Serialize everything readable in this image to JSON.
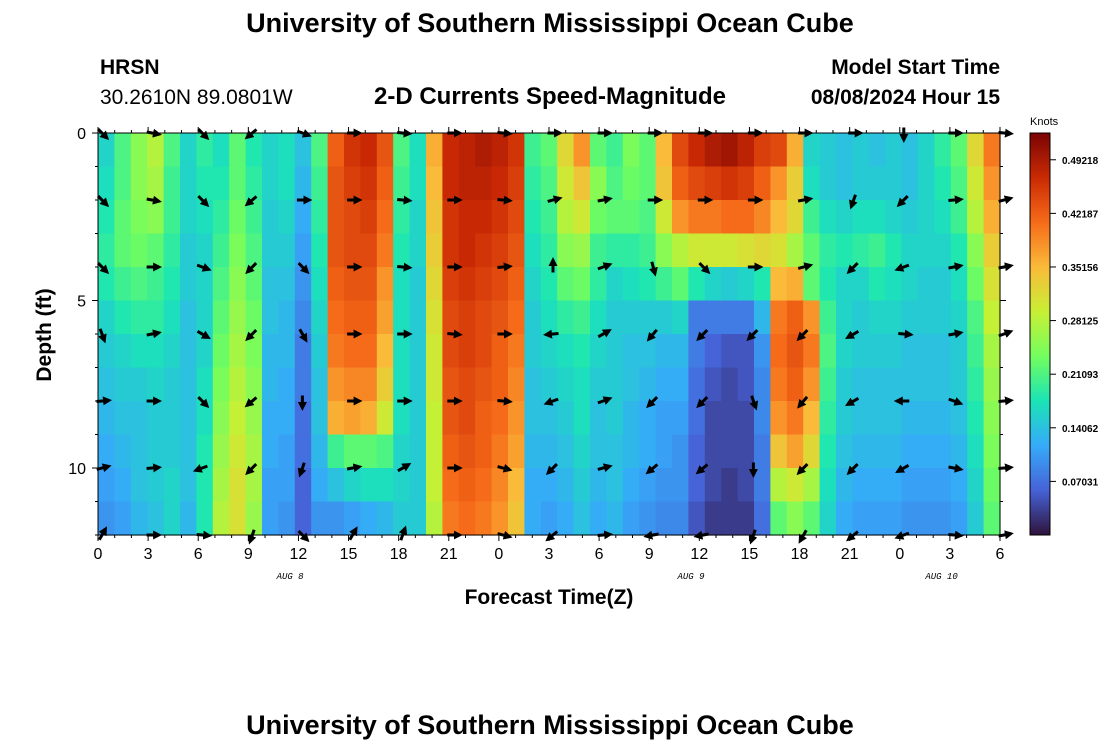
{
  "header": {
    "title": "University of Southern Mississippi Ocean Cube",
    "station_id": "HRSN",
    "station_coords": "30.2610N  89.0801W",
    "subtitle": "2-D Currents Speed-Magnitude",
    "model_start_label": "Model Start Time",
    "model_start_value": "08/08/2024 Hour 15"
  },
  "footer": {
    "repeat_title": "University of Southern Mississippi Ocean Cube"
  },
  "chart_data": {
    "type": "heatmap",
    "title": "2-D Currents Speed-Magnitude",
    "xlabel": "Forecast Time(Z)",
    "ylabel": "Depth (ft)",
    "x_ticks": [
      "0",
      "3",
      "6",
      "9",
      "12",
      "15",
      "18",
      "21",
      "0",
      "3",
      "6",
      "9",
      "12",
      "15",
      "18",
      "21",
      "0",
      "3",
      "6"
    ],
    "x_range_hours": [
      0,
      54
    ],
    "day_labels": [
      {
        "label": "AUG 8",
        "hour": 11.5
      },
      {
        "label": "AUG 9",
        "hour": 35.5
      },
      {
        "label": "AUG 10",
        "hour": 50.5
      }
    ],
    "y_ticks": [
      0,
      5,
      10
    ],
    "y_range_ft": [
      0,
      12
    ],
    "y_inverted": true,
    "colorbar": {
      "label": "Knots",
      "ticks": [
        "0.49218",
        "0.42187",
        "0.35156",
        "0.28125",
        "0.21093",
        "0.14062",
        "0.07031"
      ],
      "min": 0,
      "max": 0.5273,
      "stops": [
        "#30123b",
        "#4662d7",
        "#36aaf9",
        "#1ae4b6",
        "#72fe5e",
        "#c8ef34",
        "#faba39",
        "#f66b19",
        "#ca2a04",
        "#7a0403"
      ]
    },
    "column_hours": [
      0,
      1,
      2,
      3,
      4,
      5,
      6,
      7,
      8,
      9,
      10,
      11,
      12,
      13,
      14,
      15,
      16,
      17,
      18,
      19,
      20,
      21,
      22,
      23,
      24,
      25,
      26,
      27,
      28,
      29,
      30,
      31,
      32,
      33,
      34,
      35,
      36,
      37,
      38,
      39,
      40,
      41,
      42,
      43,
      44,
      45,
      46,
      47,
      48,
      49,
      50,
      51,
      52,
      53,
      54
    ],
    "row_depths_ft": [
      0.5,
      1.5,
      2.5,
      3.5,
      4.5,
      5.5,
      6.5,
      7.5,
      8.5,
      9.5,
      10.5,
      11.5
    ],
    "speed_knots": [
      [
        0.16,
        0.21,
        0.25,
        0.28,
        0.21,
        0.16,
        0.19,
        0.17,
        0.22,
        0.18,
        0.16,
        0.17,
        0.14,
        0.21,
        0.42,
        0.46,
        0.47,
        0.43,
        0.21,
        0.17,
        0.36,
        0.47,
        0.48,
        0.49,
        0.48,
        0.46,
        0.2,
        0.22,
        0.32,
        0.38,
        0.22,
        0.2,
        0.24,
        0.22,
        0.35,
        0.44,
        0.47,
        0.49,
        0.5,
        0.48,
        0.45,
        0.44,
        0.36,
        0.16,
        0.15,
        0.14,
        0.15,
        0.14,
        0.15,
        0.14,
        0.16,
        0.19,
        0.22,
        0.32,
        0.4
      ],
      [
        0.17,
        0.21,
        0.25,
        0.27,
        0.2,
        0.16,
        0.18,
        0.18,
        0.22,
        0.19,
        0.16,
        0.17,
        0.13,
        0.2,
        0.43,
        0.45,
        0.46,
        0.42,
        0.2,
        0.17,
        0.35,
        0.47,
        0.48,
        0.48,
        0.47,
        0.45,
        0.19,
        0.21,
        0.3,
        0.34,
        0.25,
        0.21,
        0.23,
        0.22,
        0.34,
        0.42,
        0.44,
        0.45,
        0.46,
        0.45,
        0.42,
        0.38,
        0.33,
        0.17,
        0.15,
        0.14,
        0.15,
        0.15,
        0.15,
        0.14,
        0.16,
        0.18,
        0.21,
        0.3,
        0.38
      ],
      [
        0.18,
        0.22,
        0.24,
        0.25,
        0.2,
        0.16,
        0.17,
        0.19,
        0.23,
        0.2,
        0.15,
        0.16,
        0.12,
        0.19,
        0.43,
        0.44,
        0.45,
        0.41,
        0.19,
        0.16,
        0.34,
        0.46,
        0.47,
        0.47,
        0.46,
        0.44,
        0.18,
        0.2,
        0.28,
        0.3,
        0.23,
        0.22,
        0.22,
        0.21,
        0.3,
        0.38,
        0.4,
        0.4,
        0.41,
        0.41,
        0.39,
        0.35,
        0.32,
        0.2,
        0.17,
        0.16,
        0.17,
        0.17,
        0.16,
        0.15,
        0.16,
        0.17,
        0.2,
        0.28,
        0.36
      ],
      [
        0.19,
        0.22,
        0.23,
        0.22,
        0.19,
        0.15,
        0.16,
        0.2,
        0.24,
        0.21,
        0.15,
        0.15,
        0.11,
        0.18,
        0.43,
        0.44,
        0.44,
        0.4,
        0.18,
        0.16,
        0.33,
        0.46,
        0.47,
        0.46,
        0.45,
        0.43,
        0.17,
        0.19,
        0.25,
        0.26,
        0.2,
        0.19,
        0.19,
        0.2,
        0.25,
        0.28,
        0.3,
        0.3,
        0.3,
        0.31,
        0.32,
        0.31,
        0.27,
        0.22,
        0.19,
        0.18,
        0.19,
        0.2,
        0.18,
        0.16,
        0.16,
        0.16,
        0.18,
        0.25,
        0.33
      ],
      [
        0.18,
        0.2,
        0.21,
        0.2,
        0.18,
        0.15,
        0.16,
        0.21,
        0.25,
        0.22,
        0.14,
        0.14,
        0.1,
        0.17,
        0.42,
        0.43,
        0.43,
        0.38,
        0.17,
        0.15,
        0.32,
        0.45,
        0.46,
        0.45,
        0.44,
        0.42,
        0.16,
        0.18,
        0.22,
        0.23,
        0.19,
        0.16,
        0.17,
        0.18,
        0.2,
        0.22,
        0.18,
        0.16,
        0.15,
        0.16,
        0.18,
        0.35,
        0.36,
        0.22,
        0.18,
        0.16,
        0.16,
        0.18,
        0.17,
        0.16,
        0.15,
        0.15,
        0.17,
        0.23,
        0.31
      ],
      [
        0.16,
        0.18,
        0.19,
        0.19,
        0.17,
        0.14,
        0.16,
        0.22,
        0.26,
        0.23,
        0.14,
        0.13,
        0.09,
        0.16,
        0.41,
        0.42,
        0.42,
        0.37,
        0.17,
        0.15,
        0.31,
        0.44,
        0.45,
        0.44,
        0.43,
        0.41,
        0.15,
        0.17,
        0.19,
        0.2,
        0.17,
        0.15,
        0.15,
        0.15,
        0.15,
        0.16,
        0.08,
        0.08,
        0.08,
        0.08,
        0.13,
        0.4,
        0.42,
        0.38,
        0.2,
        0.16,
        0.15,
        0.16,
        0.16,
        0.15,
        0.15,
        0.15,
        0.16,
        0.21,
        0.29
      ],
      [
        0.15,
        0.16,
        0.17,
        0.17,
        0.16,
        0.14,
        0.16,
        0.23,
        0.27,
        0.24,
        0.13,
        0.13,
        0.08,
        0.15,
        0.4,
        0.41,
        0.41,
        0.35,
        0.17,
        0.15,
        0.3,
        0.44,
        0.45,
        0.44,
        0.42,
        0.4,
        0.15,
        0.16,
        0.17,
        0.18,
        0.16,
        0.15,
        0.14,
        0.14,
        0.13,
        0.13,
        0.08,
        0.06,
        0.05,
        0.05,
        0.1,
        0.41,
        0.43,
        0.4,
        0.21,
        0.16,
        0.15,
        0.15,
        0.15,
        0.14,
        0.14,
        0.14,
        0.15,
        0.2,
        0.27
      ],
      [
        0.14,
        0.15,
        0.15,
        0.16,
        0.15,
        0.14,
        0.17,
        0.24,
        0.28,
        0.25,
        0.13,
        0.12,
        0.08,
        0.14,
        0.38,
        0.39,
        0.39,
        0.33,
        0.17,
        0.15,
        0.3,
        0.43,
        0.44,
        0.43,
        0.42,
        0.39,
        0.14,
        0.15,
        0.16,
        0.17,
        0.15,
        0.15,
        0.14,
        0.13,
        0.12,
        0.12,
        0.07,
        0.05,
        0.04,
        0.05,
        0.09,
        0.4,
        0.42,
        0.38,
        0.2,
        0.15,
        0.14,
        0.14,
        0.14,
        0.14,
        0.14,
        0.14,
        0.15,
        0.19,
        0.26
      ],
      [
        0.13,
        0.14,
        0.14,
        0.15,
        0.15,
        0.14,
        0.17,
        0.25,
        0.29,
        0.26,
        0.12,
        0.12,
        0.07,
        0.14,
        0.36,
        0.37,
        0.36,
        0.3,
        0.17,
        0.15,
        0.29,
        0.43,
        0.44,
        0.42,
        0.41,
        0.38,
        0.14,
        0.14,
        0.15,
        0.17,
        0.14,
        0.15,
        0.13,
        0.12,
        0.11,
        0.11,
        0.07,
        0.04,
        0.04,
        0.04,
        0.09,
        0.38,
        0.4,
        0.35,
        0.19,
        0.15,
        0.14,
        0.14,
        0.14,
        0.13,
        0.13,
        0.13,
        0.14,
        0.18,
        0.25
      ],
      [
        0.12,
        0.13,
        0.14,
        0.15,
        0.15,
        0.14,
        0.18,
        0.26,
        0.3,
        0.27,
        0.12,
        0.11,
        0.07,
        0.13,
        0.2,
        0.22,
        0.22,
        0.21,
        0.16,
        0.15,
        0.29,
        0.42,
        0.43,
        0.42,
        0.4,
        0.37,
        0.13,
        0.13,
        0.14,
        0.16,
        0.14,
        0.14,
        0.13,
        0.12,
        0.11,
        0.1,
        0.06,
        0.04,
        0.04,
        0.04,
        0.08,
        0.34,
        0.37,
        0.32,
        0.18,
        0.14,
        0.13,
        0.13,
        0.13,
        0.12,
        0.12,
        0.12,
        0.13,
        0.17,
        0.24
      ],
      [
        0.11,
        0.12,
        0.14,
        0.15,
        0.16,
        0.14,
        0.18,
        0.27,
        0.31,
        0.27,
        0.11,
        0.11,
        0.06,
        0.12,
        0.14,
        0.16,
        0.17,
        0.17,
        0.16,
        0.15,
        0.29,
        0.41,
        0.42,
        0.41,
        0.39,
        0.35,
        0.12,
        0.12,
        0.13,
        0.15,
        0.13,
        0.14,
        0.12,
        0.11,
        0.1,
        0.1,
        0.06,
        0.04,
        0.03,
        0.04,
        0.08,
        0.28,
        0.3,
        0.27,
        0.17,
        0.13,
        0.12,
        0.12,
        0.12,
        0.11,
        0.11,
        0.11,
        0.12,
        0.16,
        0.23
      ],
      [
        0.1,
        0.11,
        0.13,
        0.14,
        0.16,
        0.13,
        0.18,
        0.28,
        0.31,
        0.26,
        0.11,
        0.1,
        0.06,
        0.1,
        0.1,
        0.11,
        0.12,
        0.13,
        0.15,
        0.15,
        0.28,
        0.4,
        0.41,
        0.4,
        0.38,
        0.34,
        0.12,
        0.11,
        0.12,
        0.14,
        0.12,
        0.13,
        0.11,
        0.1,
        0.09,
        0.09,
        0.05,
        0.03,
        0.03,
        0.03,
        0.07,
        0.22,
        0.25,
        0.22,
        0.16,
        0.12,
        0.11,
        0.11,
        0.11,
        0.1,
        0.1,
        0.1,
        0.11,
        0.15,
        0.22
      ]
    ],
    "vector_hours": [
      0,
      3,
      6,
      9,
      12,
      15,
      18,
      21,
      24,
      27,
      30,
      33,
      36,
      39,
      42,
      45,
      48,
      51,
      54
    ],
    "vector_depths_ft": [
      0,
      2,
      4,
      6,
      8,
      10,
      12
    ],
    "vector_directions_deg": [
      [
        135,
        100,
        135,
        230,
        110,
        90,
        95,
        90,
        95,
        90,
        90,
        90,
        90,
        90,
        90,
        90,
        180,
        90,
        95
      ],
      [
        135,
        100,
        135,
        230,
        90,
        90,
        95,
        90,
        95,
        75,
        80,
        90,
        90,
        90,
        80,
        200,
        225,
        85,
        75
      ],
      [
        135,
        90,
        110,
        225,
        135,
        90,
        95,
        90,
        85,
        0,
        70,
        165,
        135,
        90,
        75,
        225,
        250,
        80,
        80
      ],
      [
        160,
        80,
        120,
        225,
        150,
        90,
        90,
        95,
        90,
        265,
        60,
        220,
        225,
        225,
        225,
        240,
        95,
        80,
        70
      ],
      [
        85,
        90,
        135,
        230,
        180,
        90,
        90,
        90,
        95,
        250,
        70,
        225,
        225,
        160,
        220,
        240,
        270,
        110,
        85
      ],
      [
        75,
        85,
        250,
        225,
        200,
        80,
        60,
        90,
        105,
        225,
        75,
        230,
        230,
        180,
        225,
        225,
        240,
        100,
        85
      ],
      [
        30,
        90,
        95,
        200,
        135,
        30,
        20,
        90,
        105,
        230,
        85,
        260,
        260,
        200,
        210,
        230,
        250,
        95,
        80
      ]
    ]
  }
}
